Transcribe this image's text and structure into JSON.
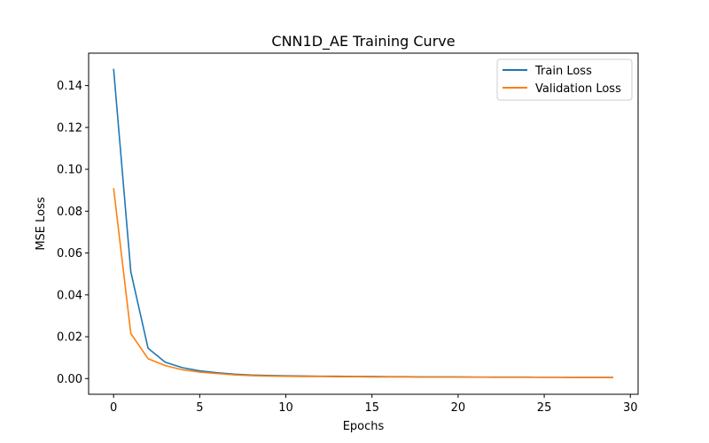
{
  "chart_data": {
    "type": "line",
    "title": "CNN1D_AE Training Curve",
    "xlabel": "Epochs",
    "ylabel": "MSE Loss",
    "xlim": [
      -1.45,
      30.45
    ],
    "ylim": [
      -0.0075,
      0.1555
    ],
    "xticks": [
      0,
      5,
      10,
      15,
      20,
      25,
      30
    ],
    "xtick_labels": [
      "0",
      "5",
      "10",
      "15",
      "20",
      "25",
      "30"
    ],
    "yticks": [
      0.0,
      0.02,
      0.04,
      0.06,
      0.08,
      0.1,
      0.12,
      0.14
    ],
    "ytick_labels": [
      "0.00",
      "0.02",
      "0.04",
      "0.06",
      "0.08",
      "0.10",
      "0.12",
      "0.14"
    ],
    "grid": false,
    "legend_position": "top-right",
    "x": [
      0,
      1,
      2,
      3,
      4,
      5,
      6,
      7,
      8,
      9,
      10,
      11,
      12,
      13,
      14,
      15,
      16,
      17,
      18,
      19,
      20,
      21,
      22,
      23,
      24,
      25,
      26,
      27,
      28,
      29
    ],
    "series": [
      {
        "name": "Train Loss",
        "color": "#1f77b4",
        "values": [
          0.148,
          0.051,
          0.0145,
          0.0078,
          0.0052,
          0.0037,
          0.0028,
          0.0021,
          0.0017,
          0.0015,
          0.0013,
          0.0012,
          0.0011,
          0.0011,
          0.001,
          0.001,
          0.0009,
          0.0009,
          0.0008,
          0.0008,
          0.0008,
          0.0007,
          0.0007,
          0.0007,
          0.0007,
          0.0006,
          0.0006,
          0.0006,
          0.0006,
          0.0006
        ]
      },
      {
        "name": "Validation Loss",
        "color": "#ff7f0e",
        "values": [
          0.091,
          0.0215,
          0.0095,
          0.0062,
          0.0042,
          0.0031,
          0.0024,
          0.0018,
          0.0014,
          0.0012,
          0.0011,
          0.001,
          0.001,
          0.0009,
          0.0009,
          0.0008,
          0.0008,
          0.0008,
          0.0007,
          0.0007,
          0.0007,
          0.0007,
          0.0006,
          0.0006,
          0.0006,
          0.0006,
          0.0006,
          0.0005,
          0.0005,
          0.0005
        ]
      }
    ]
  }
}
